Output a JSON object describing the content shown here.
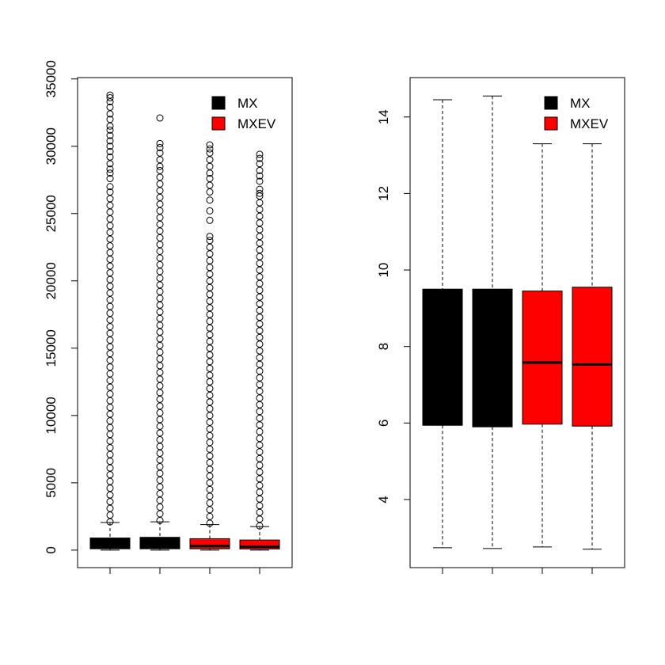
{
  "chart_data": [
    {
      "type": "box",
      "categories": [
        null,
        null,
        null,
        null
      ],
      "ylim": [
        -1300,
        35100
      ],
      "yticks": [
        0,
        5000,
        10000,
        15000,
        20000,
        25000,
        30000,
        35000
      ],
      "legend": "top-right",
      "series": [
        {
          "name": "MX",
          "color": "#000000",
          "boxes": [
            {
              "whisker_low": 0,
              "q1": 100,
              "median": 350,
              "q3": 900,
              "whisker_high": 2050,
              "outliers": [
                2100,
                2600,
                3100,
                3600,
                4100,
                4600,
                5100,
                5600,
                6100,
                6600,
                7100,
                7600,
                8100,
                8600,
                9100,
                9600,
                10100,
                10600,
                11100,
                11600,
                12100,
                12600,
                13100,
                13600,
                14100,
                14600,
                15100,
                15600,
                16100,
                16600,
                17100,
                17600,
                18100,
                18600,
                19100,
                19600,
                20100,
                20600,
                21100,
                21600,
                22100,
                22600,
                23100,
                23600,
                24100,
                24600,
                25100,
                25600,
                26100,
                26600,
                27000,
                27600,
                28000,
                28300,
                28700,
                29200,
                29600,
                30000,
                30400,
                30800,
                31200,
                31500,
                32000,
                32400,
                32900,
                33300,
                33600,
                33800
              ]
            },
            {
              "whisker_low": 0,
              "q1": 100,
              "median": 400,
              "q3": 950,
              "whisker_high": 2100,
              "outliers": [
                2200,
                2700,
                3200,
                3700,
                4200,
                4700,
                5200,
                5700,
                6200,
                6700,
                7200,
                7700,
                8200,
                8700,
                9200,
                9700,
                10200,
                10700,
                11200,
                11700,
                12200,
                12700,
                13200,
                13700,
                14200,
                14700,
                15200,
                15700,
                16200,
                16700,
                17200,
                17700,
                18200,
                18700,
                19200,
                19700,
                20200,
                20700,
                21200,
                21700,
                22200,
                22700,
                23200,
                23700,
                24200,
                24700,
                25200,
                25700,
                26200,
                26700,
                27200,
                27700,
                28200,
                28500,
                29000,
                29500,
                29900,
                30200,
                32100
              ]
            }
          ]
        },
        {
          "name": "MXEV",
          "color": "#ff0000",
          "boxes": [
            {
              "whisker_low": 0,
              "q1": 100,
              "median": 300,
              "q3": 850,
              "whisker_high": 1900,
              "outliers": [
                2000,
                2500,
                3000,
                3500,
                4000,
                4500,
                5000,
                5500,
                6000,
                6500,
                7000,
                7500,
                8000,
                8500,
                9000,
                9500,
                10000,
                10500,
                11000,
                11500,
                12000,
                12500,
                13000,
                13500,
                14000,
                14500,
                15000,
                15500,
                16000,
                16500,
                17000,
                17500,
                18000,
                18500,
                19000,
                19500,
                20000,
                20500,
                21000,
                21500,
                22000,
                22500,
                23000,
                23300,
                24500,
                25200,
                26000,
                26600,
                27100,
                27600,
                28000,
                28500,
                29000,
                29500,
                29800,
                30100
              ]
            },
            {
              "whisker_low": 0,
              "q1": 80,
              "median": 250,
              "q3": 750,
              "whisker_high": 1750,
              "outliers": [
                1800,
                2300,
                2800,
                3300,
                3800,
                4300,
                4800,
                5300,
                5800,
                6300,
                6800,
                7300,
                7800,
                8300,
                8800,
                9300,
                9800,
                10300,
                10800,
                11300,
                11800,
                12300,
                12800,
                13300,
                13800,
                14300,
                14800,
                15300,
                15800,
                16300,
                16800,
                17300,
                17800,
                18300,
                18800,
                19300,
                19800,
                20300,
                20800,
                21300,
                21800,
                22300,
                22800,
                23300,
                23800,
                24300,
                24800,
                25300,
                25800,
                26300,
                26500,
                26800,
                27400,
                27800,
                28200,
                28700,
                29100,
                29400
              ]
            }
          ]
        }
      ]
    },
    {
      "type": "box",
      "categories": [
        null,
        null,
        null,
        null
      ],
      "ylim": [
        2.22,
        15.03
      ],
      "yticks": [
        4,
        6,
        8,
        10,
        12,
        14
      ],
      "legend": "top-right",
      "series": [
        {
          "name": "MX",
          "color": "#000000",
          "boxes": [
            {
              "whisker_low": 2.74,
              "q1": 5.94,
              "median": 7.6,
              "q3": 9.5,
              "whisker_high": 14.45
            },
            {
              "whisker_low": 2.72,
              "q1": 5.9,
              "median": 7.6,
              "q3": 9.5,
              "whisker_high": 14.55
            }
          ]
        },
        {
          "name": "MXEV",
          "color": "#ff0000",
          "boxes": [
            {
              "whisker_low": 2.76,
              "q1": 5.97,
              "median": 7.58,
              "q3": 9.45,
              "whisker_high": 13.3
            },
            {
              "whisker_low": 2.7,
              "q1": 5.92,
              "median": 7.53,
              "q3": 9.55,
              "whisker_high": 13.3
            }
          ]
        }
      ]
    }
  ]
}
